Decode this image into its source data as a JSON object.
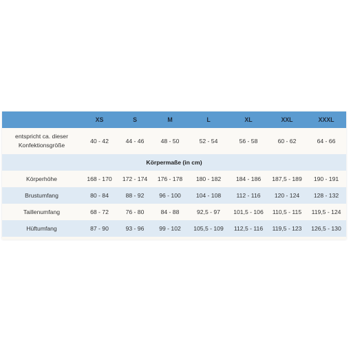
{
  "table": {
    "columns": [
      "",
      "XS",
      "S",
      "M",
      "L",
      "XL",
      "XXL",
      "XXXL"
    ],
    "konfektion": {
      "label_line1": "entspricht ca. dieser",
      "label_line2": "Konfektionsgröße",
      "values": [
        "40 - 42",
        "44 - 46",
        "48 - 50",
        "52 - 54",
        "56 - 58",
        "60 - 62",
        "64 - 66"
      ]
    },
    "section_title": "Körpermaße (in cm)",
    "rows": [
      {
        "label": "Körperhöhe",
        "values": [
          "168 - 170",
          "172 - 174",
          "176 - 178",
          "180 - 182",
          "184 - 186",
          "187,5 - 189",
          "190 - 191"
        ]
      },
      {
        "label": "Brustumfang",
        "values": [
          "80 - 84",
          "88 - 92",
          "96 - 100",
          "104 - 108",
          "112 - 116",
          "120 - 124",
          "128 - 132"
        ]
      },
      {
        "label": "Taillenumfang",
        "values": [
          "68 - 72",
          "76 - 80",
          "84 - 88",
          "92,5 - 97",
          "101,5 - 106",
          "110,5 - 115",
          "119,5 - 124"
        ]
      },
      {
        "label": "Hüftumfang",
        "values": [
          "87 - 90",
          "93 - 96",
          "99 - 102",
          "105,5 - 109",
          "112,5 - 116",
          "119,5 - 123",
          "126,5 - 130"
        ]
      }
    ]
  },
  "colors": {
    "header_bg": "#5b9bd0",
    "stripe_bg": "#dfeaf4",
    "plain_bg": "#fbf9f5"
  }
}
